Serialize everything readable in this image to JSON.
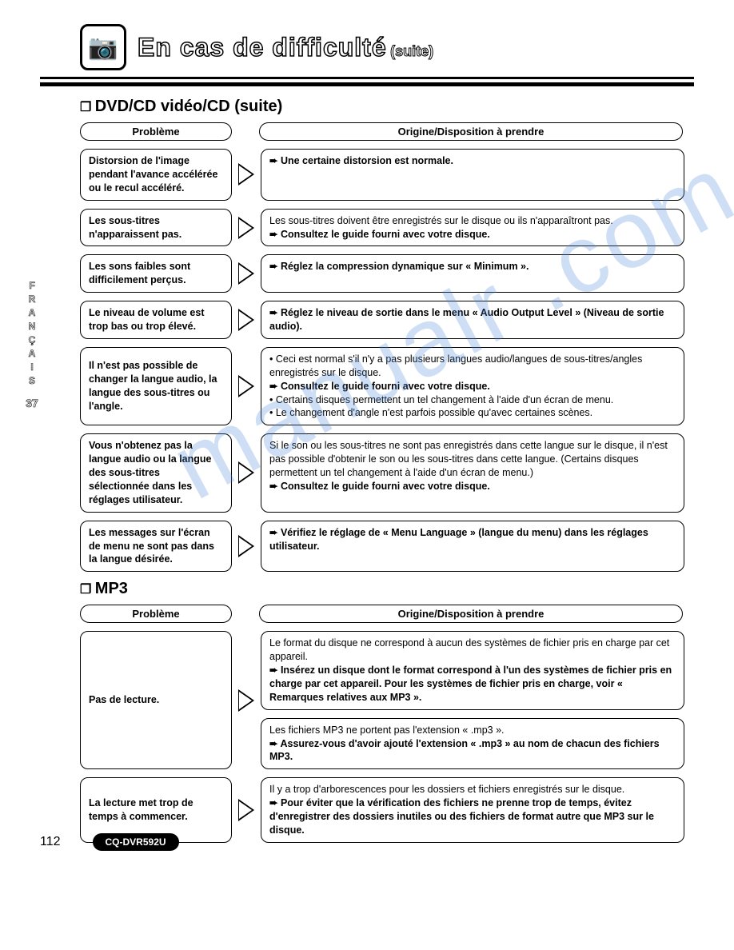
{
  "header": {
    "title": "En cas de difficulté",
    "suite": "(suite)"
  },
  "side_tab": {
    "lang": "FRANÇAIS",
    "page": "37"
  },
  "watermark": "manualr .com",
  "sections": [
    {
      "title": "DVD/CD vidéo/CD (suite)",
      "col_problem": "Problème",
      "col_solution": "Origine/Disposition à prendre",
      "rows": [
        {
          "problem": "Distorsion de l'image pendant l'avance accélérée ou le recul accéléré.",
          "solutions": [
            {
              "lines": [
                {
                  "type": "arrow",
                  "bold": true,
                  "text": "Une certaine distorsion est normale."
                }
              ]
            }
          ]
        },
        {
          "problem": "Les sous-titres n'apparaissent pas.",
          "solutions": [
            {
              "lines": [
                {
                  "type": "plain",
                  "text": "Les sous-titres doivent être enregistrés sur le disque ou ils n'apparaîtront pas."
                },
                {
                  "type": "arrow",
                  "bold": true,
                  "text": "Consultez le guide fourni avec votre disque."
                }
              ]
            }
          ]
        },
        {
          "problem": "Les sons faibles sont difficilement perçus.",
          "solutions": [
            {
              "lines": [
                {
                  "type": "arrow",
                  "bold": true,
                  "text": "Réglez la compression dynamique sur « Minimum »."
                }
              ]
            }
          ]
        },
        {
          "problem": "Le niveau de volume est trop bas ou trop élevé.",
          "solutions": [
            {
              "lines": [
                {
                  "type": "arrow",
                  "bold": true,
                  "text": "Réglez le niveau de sortie dans le menu « Audio Output Level » (Niveau de sortie audio)."
                }
              ]
            }
          ]
        },
        {
          "problem": "Il n'est pas possible de changer la langue audio, la langue des sous-titres ou l'angle.",
          "solutions": [
            {
              "lines": [
                {
                  "type": "bullet",
                  "text": "Ceci est normal s'il n'y a pas plusieurs langues audio/langues de sous-titres/angles enregistrés sur le disque."
                },
                {
                  "type": "arrow",
                  "bold": true,
                  "text": "Consultez le guide fourni avec votre disque."
                },
                {
                  "type": "bullet",
                  "text": "Certains disques permettent un tel changement à l'aide d'un écran de menu."
                },
                {
                  "type": "bullet",
                  "text": "Le changement d'angle n'est parfois possible qu'avec certaines scènes."
                }
              ]
            }
          ]
        },
        {
          "problem": "Vous n'obtenez pas la langue audio ou la langue des sous-titres sélectionnée dans les réglages utilisateur.",
          "solutions": [
            {
              "lines": [
                {
                  "type": "plain",
                  "text": "Si le son ou les sous-titres ne sont pas enregistrés dans cette langue sur le disque, il n'est pas possible d'obtenir le son ou les sous-titres dans cette langue. (Certains disques permettent un tel changement à l'aide d'un écran de menu.)"
                },
                {
                  "type": "arrow",
                  "bold": true,
                  "text": "Consultez le guide fourni avec votre disque."
                }
              ]
            }
          ]
        },
        {
          "problem": "Les messages sur l'écran de menu ne sont pas dans la langue désirée.",
          "solutions": [
            {
              "lines": [
                {
                  "type": "arrow",
                  "bold": true,
                  "text": "Vérifiez le réglage de « Menu Language » (langue du menu) dans les réglages utilisateur."
                }
              ]
            }
          ]
        }
      ]
    },
    {
      "title": "MP3",
      "col_problem": "Problème",
      "col_solution": "Origine/Disposition à prendre",
      "rows": [
        {
          "problem": "Pas de lecture.",
          "solutions": [
            {
              "lines": [
                {
                  "type": "plain",
                  "text": "Le format du disque ne correspond à aucun des systèmes de fichier pris en charge par cet appareil."
                },
                {
                  "type": "arrow",
                  "bold": true,
                  "text": "Insérez un disque dont le format correspond à l'un des systèmes de fichier pris en charge par cet appareil. Pour les systèmes de fichier pris en charge, voir « Remarques relatives aux MP3 »."
                }
              ]
            },
            {
              "lines": [
                {
                  "type": "plain",
                  "text": "Les fichiers MP3 ne portent pas l'extension « .mp3 »."
                },
                {
                  "type": "arrow",
                  "bold": true,
                  "text": "Assurez-vous d'avoir ajouté l'extension « .mp3 » au nom de chacun des fichiers MP3."
                }
              ]
            }
          ]
        },
        {
          "problem": "La lecture met trop de temps à commencer.",
          "solutions": [
            {
              "lines": [
                {
                  "type": "plain",
                  "text": "Il y a trop d'arborescences pour les dossiers et fichiers enregistrés sur le disque."
                },
                {
                  "type": "arrow",
                  "bold": true,
                  "text": "Pour éviter que la vérification des fichiers ne prenne trop de temps, évitez d'enregistrer des dossiers inutiles ou des fichiers de format autre que MP3 sur le disque."
                }
              ]
            }
          ]
        }
      ]
    }
  ],
  "footer": {
    "page_number": "112",
    "model": "CQ-DVR592U"
  }
}
